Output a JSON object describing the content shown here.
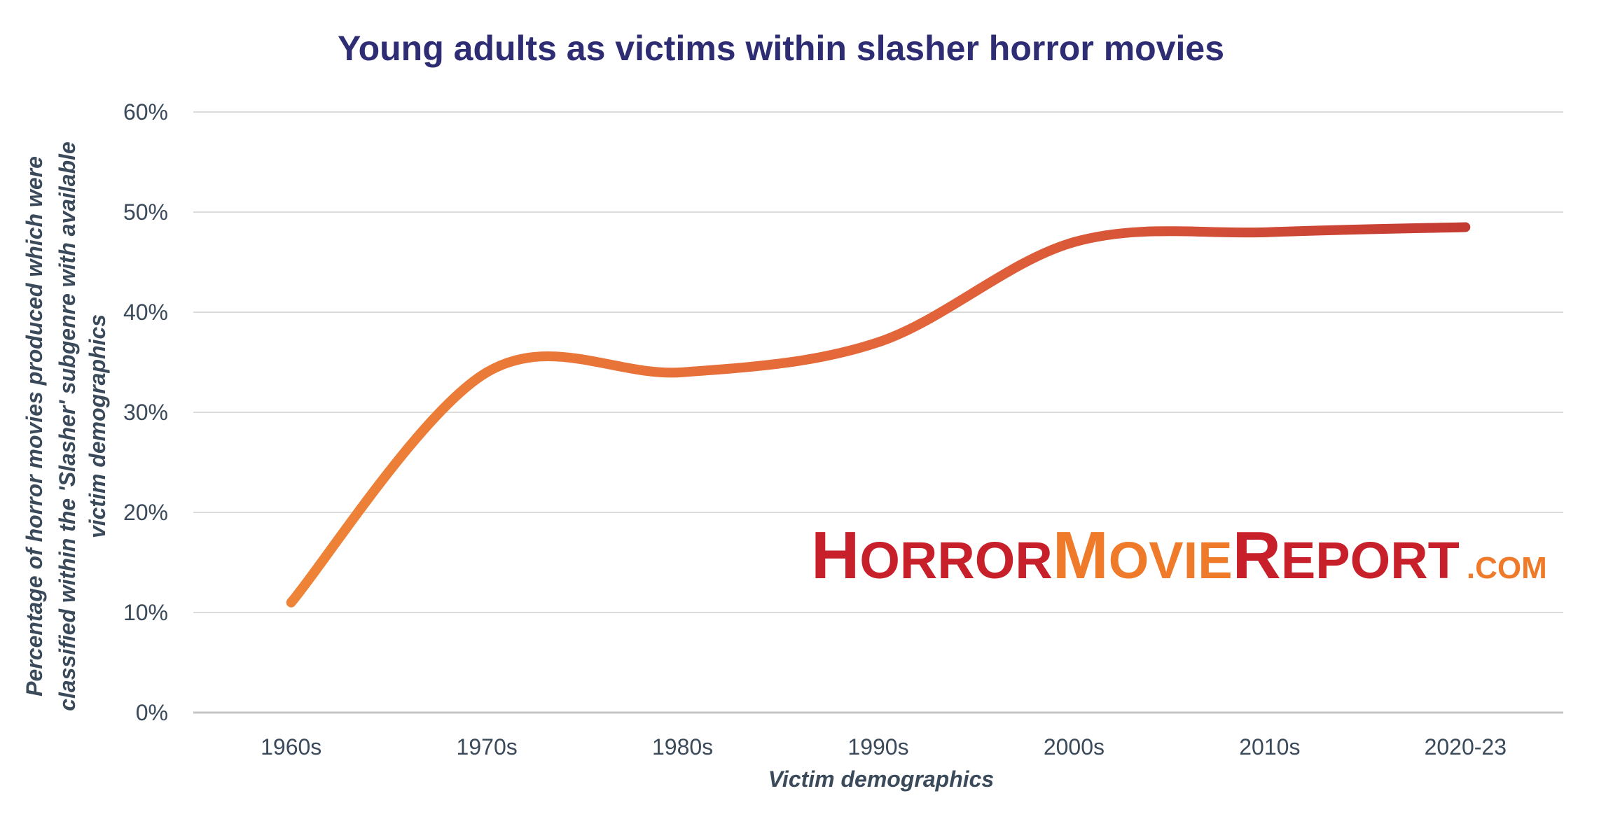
{
  "chart_data": {
    "type": "line",
    "title": "Young adults as victims within slasher horror movies",
    "xlabel": "Victim demographics",
    "ylabel_lines": [
      "Percentage of horror movies produced which were",
      "classified within the 'Slasher' subgenre with available",
      "victim demographics"
    ],
    "categories": [
      "1960s",
      "1970s",
      "1980s",
      "1990s",
      "2000s",
      "2010s",
      "2020-23"
    ],
    "series": [
      {
        "values": [
          11,
          34,
          34,
          37,
          47,
          48,
          48.5
        ]
      }
    ],
    "ylim": [
      0,
      60
    ],
    "yticks": [
      0,
      10,
      20,
      30,
      40,
      50,
      60
    ],
    "ytick_suffix": "%",
    "grid": true,
    "colors": {
      "line_start": "#ee8437",
      "line_end": "#c33a33",
      "title": "#2e2c73"
    }
  },
  "watermark": {
    "parts": [
      {
        "text": "Horror",
        "color": "#c8202a"
      },
      {
        "text": "Movie",
        "color": "#ee7a2a"
      },
      {
        "text": "Report",
        "color": "#c8202a"
      },
      {
        "text": ".com",
        "color": "#ee7a2a"
      }
    ]
  }
}
